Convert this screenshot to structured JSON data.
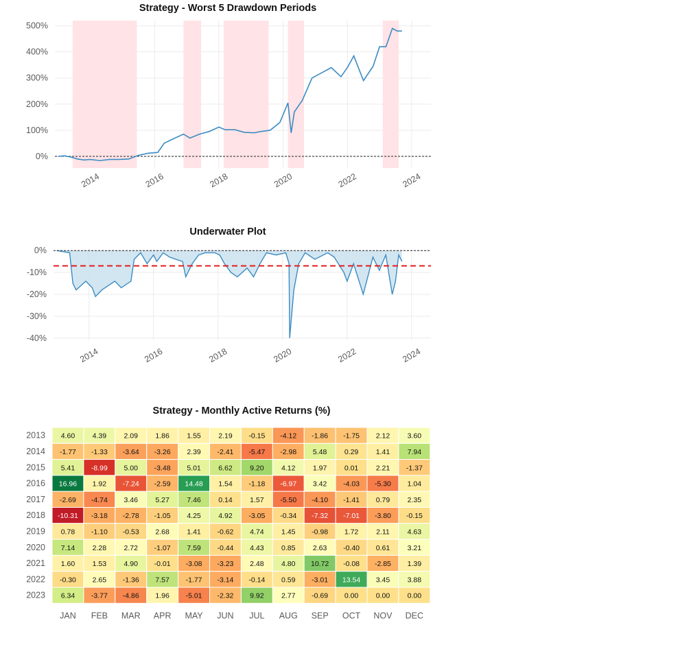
{
  "chart_data": [
    {
      "type": "line",
      "title": "Strategy - Worst 5 Drawdown Periods",
      "x_ticks": [
        "2014",
        "2016",
        "2018",
        "2020",
        "2022",
        "2024"
      ],
      "y_ticks": [
        "0%",
        "100%",
        "200%",
        "300%",
        "400%",
        "500%"
      ],
      "ylim": [
        -45,
        520
      ],
      "xlim": [
        2012.9,
        2024.6
      ],
      "series": [
        {
          "x": [
            2013.0,
            2013.2,
            2013.4,
            2013.6,
            2013.8,
            2014.0,
            2014.3,
            2014.6,
            2014.9,
            2015.2,
            2015.5,
            2015.8,
            2016.1,
            2016.3,
            2016.6,
            2016.9,
            2017.1,
            2017.4,
            2017.7,
            2018.0,
            2018.2,
            2018.5,
            2018.8,
            2019.1,
            2019.3,
            2019.6,
            2019.9,
            2020.15,
            2020.25,
            2020.35,
            2020.6,
            2020.9,
            2021.2,
            2021.5,
            2021.8,
            2022.0,
            2022.2,
            2022.5,
            2022.8,
            2023.0,
            2023.2,
            2023.4,
            2023.55,
            2023.7
          ],
          "y": [
            0,
            2,
            -3,
            -10,
            -14,
            -12,
            -16,
            -12,
            -12,
            -10,
            4,
            12,
            15,
            50,
            68,
            85,
            70,
            85,
            95,
            112,
            102,
            102,
            92,
            90,
            95,
            100,
            130,
            205,
            90,
            170,
            215,
            300,
            320,
            340,
            305,
            340,
            385,
            290,
            345,
            420,
            420,
            490,
            480,
            480
          ]
        }
      ],
      "shaded_periods": [
        [
          2013.45,
          2015.45
        ],
        [
          2016.9,
          2017.45
        ],
        [
          2018.15,
          2019.55
        ],
        [
          2020.15,
          2020.65
        ],
        [
          2023.1,
          2023.6
        ]
      ],
      "colors": {
        "line": "#3b8bc2",
        "shade": "#ffe3e6",
        "zero_line": "#222222"
      },
      "grid": true
    },
    {
      "type": "area",
      "title": "Underwater Plot",
      "x_ticks": [
        "2014",
        "2016",
        "2018",
        "2020",
        "2022",
        "2024"
      ],
      "y_ticks": [
        "0%",
        "-10%",
        "-20%",
        "-30%",
        "-40%"
      ],
      "ylim": [
        -41,
        1
      ],
      "xlim": [
        2012.9,
        2024.6
      ],
      "series": [
        {
          "x": [
            2013.0,
            2013.4,
            2013.5,
            2013.6,
            2013.9,
            2014.1,
            2014.2,
            2014.4,
            2014.6,
            2014.8,
            2015.0,
            2015.3,
            2015.4,
            2015.6,
            2015.8,
            2016.0,
            2016.1,
            2016.3,
            2016.5,
            2016.9,
            2017.0,
            2017.2,
            2017.4,
            2017.6,
            2017.9,
            2018.05,
            2018.2,
            2018.4,
            2018.6,
            2018.9,
            2019.1,
            2019.3,
            2019.5,
            2019.8,
            2020.1,
            2020.2,
            2020.22,
            2020.35,
            2020.5,
            2020.7,
            2021.0,
            2021.4,
            2021.6,
            2021.9,
            2022.0,
            2022.2,
            2022.5,
            2022.8,
            2023.0,
            2023.2,
            2023.4,
            2023.5,
            2023.6,
            2023.7
          ],
          "y": [
            0,
            -1,
            -15,
            -18,
            -14,
            -17,
            -21,
            -18,
            -16,
            -14,
            -17,
            -14,
            -4,
            -1,
            -6,
            -2,
            -5,
            -1,
            -3,
            -5,
            -12,
            -6,
            -2,
            -1,
            -1,
            -2,
            -6,
            -10,
            -12,
            -8,
            -12,
            -6,
            -1,
            -2,
            -1,
            -6,
            -40,
            -18,
            -6,
            -1,
            -4,
            -1,
            -3,
            -10,
            -14,
            -6,
            -20,
            -3,
            -9,
            -2,
            -20,
            -14,
            -2,
            -5
          ]
        }
      ],
      "reference_line": -7,
      "colors": {
        "line": "#3b8bc2",
        "fill": "#cde3f0",
        "reference": "#e41a1c",
        "zero_line": "#222222"
      },
      "grid": true
    },
    {
      "type": "heatmap",
      "title": "Strategy - Monthly Active Returns (%)",
      "columns": [
        "JAN",
        "FEB",
        "MAR",
        "APR",
        "MAY",
        "JUN",
        "JUL",
        "AUG",
        "SEP",
        "OCT",
        "NOV",
        "DEC"
      ],
      "rows": [
        "2013",
        "2014",
        "2015",
        "2016",
        "2017",
        "2018",
        "2019",
        "2020",
        "2021",
        "2022",
        "2023"
      ],
      "values": [
        [
          "4.60",
          "4.39",
          "2.09",
          "1.86",
          "1.55",
          "2.19",
          "-0.15",
          "-4.12",
          "-1.86",
          "-1.75",
          "2.12",
          "3.60"
        ],
        [
          "-1.77",
          "-1.33",
          "-3.64",
          "-3.26",
          "2.39",
          "-2.41",
          "-5.47",
          "-2.98",
          "5.48",
          "0.29",
          "1.41",
          "7.94"
        ],
        [
          "5.41",
          "-8.99",
          "5.00",
          "-3.48",
          "5.01",
          "6.62",
          "9.20",
          "4.12",
          "1.97",
          "0.01",
          "2.21",
          "-1.37"
        ],
        [
          "16.96",
          "1.92",
          "-7.24",
          "-2.59",
          "14.48",
          "1.54",
          "-1.18",
          "-6.97",
          "3.42",
          "-4.03",
          "-5.30",
          "1.04"
        ],
        [
          "-2.69",
          "-4.74",
          "3.46",
          "5.27",
          "7.46",
          "0.14",
          "1.57",
          "-5.50",
          "-4.10",
          "-1.41",
          "0.79",
          "2.35"
        ],
        [
          "-10.31",
          "-3.18",
          "-2.78",
          "-1.05",
          "4.25",
          "4.92",
          "-3.05",
          "-0.34",
          "-7.32",
          "-7.01",
          "-3.80",
          "-0.15"
        ],
        [
          "0.78",
          "-1.10",
          "-0.53",
          "2.68",
          "1.41",
          "-0.62",
          "4.74",
          "1.45",
          "-0.98",
          "1.72",
          "2.11",
          "4.63"
        ],
        [
          "7.14",
          "2.28",
          "2.72",
          "-1.07",
          "7.59",
          "-0.44",
          "4.43",
          "0.85",
          "2.63",
          "-0.40",
          "0.61",
          "3.21"
        ],
        [
          "1.60",
          "1.53",
          "4.90",
          "-0.01",
          "-3.08",
          "-3.23",
          "2.48",
          "4.80",
          "10.72",
          "-0.08",
          "-2.85",
          "1.39"
        ],
        [
          "-0.30",
          "2.65",
          "-1.36",
          "7.57",
          "-1.77",
          "-3.14",
          "-0.14",
          "0.59",
          "-3.01",
          "13.54",
          "3.45",
          "3.88"
        ],
        [
          "6.34",
          "-3.77",
          "-4.86",
          "1.96",
          "-5.01",
          "-2.32",
          "9.92",
          "2.77",
          "-0.69",
          "0.00",
          "0.00",
          "0.00"
        ]
      ],
      "colormap": "RdYlGn",
      "color_range": [
        -12,
        18
      ]
    }
  ]
}
